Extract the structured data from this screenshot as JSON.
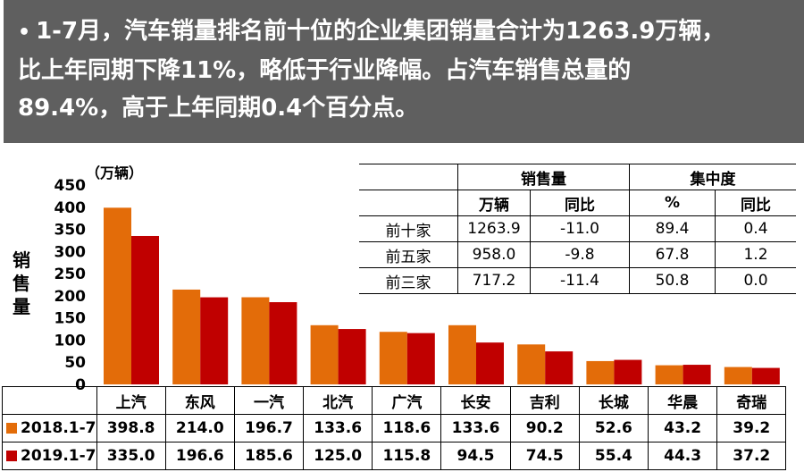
{
  "banner": {
    "bullet": "•",
    "lines": [
      "1-7月，汽车销量排名前十位的企业集团销量合计为1263.9万辆，",
      "比上年同期下降11%，略低于行业降幅。占汽车销售总量的",
      "89.4%，高于上年同期0.4个百分点。"
    ]
  },
  "chart_data": {
    "type": "bar",
    "unit_label": "（万辆）",
    "ylabel": "销售量",
    "ylim": [
      0,
      450
    ],
    "yticks": [
      0,
      50,
      100,
      150,
      200,
      250,
      300,
      350,
      400,
      450
    ],
    "categories": [
      "上汽",
      "东风",
      "一汽",
      "北汽",
      "广汽",
      "长安",
      "吉利",
      "长城",
      "华晨",
      "奇瑞"
    ],
    "series": [
      {
        "name": "2018.1-7",
        "color": "#e36c09",
        "values": [
          398.8,
          214.0,
          196.7,
          133.6,
          118.6,
          133.6,
          90.2,
          52.6,
          43.2,
          39.2
        ]
      },
      {
        "name": "2019.1-7",
        "color": "#c00000",
        "values": [
          335.0,
          196.6,
          185.6,
          125.0,
          115.8,
          94.5,
          74.5,
          55.4,
          44.3,
          37.2
        ]
      }
    ],
    "value_labels": [
      [
        "398.8",
        "214.0",
        "196.7",
        "133.6",
        "118.6",
        "133.6",
        "90.2",
        "52.6",
        "43.2",
        "39.2"
      ],
      [
        "335.0",
        "196.6",
        "185.6",
        "125.0",
        "115.8",
        "94.5",
        "74.5",
        "55.4",
        "44.3",
        "37.2"
      ]
    ],
    "grid": false
  },
  "summary_table": {
    "group_headers": [
      "销售量",
      "集中度"
    ],
    "sub_headers": [
      "万辆",
      "同比",
      "%",
      "同比"
    ],
    "rows": [
      {
        "label": "前十家",
        "cells": [
          "1263.9",
          "-11.0",
          "89.4",
          "0.4"
        ]
      },
      {
        "label": "前五家",
        "cells": [
          "958.0",
          "-9.8",
          "67.8",
          "1.2"
        ]
      },
      {
        "label": "前三家",
        "cells": [
          "717.2",
          "-11.4",
          "50.8",
          "0.0"
        ]
      }
    ]
  }
}
